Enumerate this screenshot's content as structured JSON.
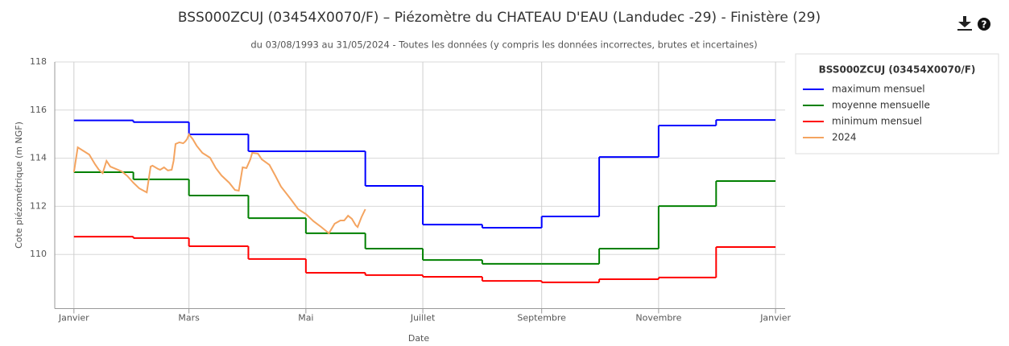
{
  "chart_data": {
    "type": "line",
    "title": "BSS000ZCUJ (03454X0070/F) – Piézomètre du CHATEAU D'EAU (Landudec -29) - Finistère (29)",
    "subtitle": "du 03/08/1993 au 31/05/2024 - Toutes les données (y compris les données incorrectes, brutes et incertaines)",
    "x_label": "Date",
    "y_label": "Cote piézométrique (m NGF)",
    "legend_title": "BSS000ZCUJ (03454X0070/F)",
    "legend": "right",
    "grid": true,
    "xlim": [
      -10,
      371
    ],
    "xticks": [
      {
        "value": 0,
        "label": "Janvier"
      },
      {
        "value": 60,
        "label": "Mars"
      },
      {
        "value": 121,
        "label": "Mai"
      },
      {
        "value": 182,
        "label": "Juillet"
      },
      {
        "value": 244,
        "label": "Septembre"
      },
      {
        "value": 305,
        "label": "Novembre"
      },
      {
        "value": 366,
        "label": "Janvier"
      }
    ],
    "ylim": [
      107.75,
      118
    ],
    "yticks": [
      110,
      112,
      114,
      116,
      118
    ],
    "series": [
      {
        "name": "maximum mensuel",
        "color": "#0000ff",
        "step": true,
        "x": [
          0,
          31,
          60,
          91,
          121,
          152,
          182,
          213,
          244,
          274,
          305,
          335
        ],
        "values": [
          115.57,
          115.5,
          114.99,
          114.29,
          114.29,
          112.85,
          111.24,
          111.11,
          111.58,
          114.05,
          115.36,
          115.59
        ]
      },
      {
        "name": "moyenne mensuelle",
        "color": "#008000",
        "step": true,
        "x": [
          0,
          31,
          60,
          91,
          121,
          152,
          182,
          213,
          244,
          274,
          305,
          335
        ],
        "values": [
          113.42,
          113.12,
          112.45,
          111.51,
          110.88,
          110.24,
          109.77,
          109.61,
          109.61,
          110.24,
          112.01,
          113.05
        ]
      },
      {
        "name": "minimum mensuel",
        "color": "#ff0000",
        "step": true,
        "x": [
          0,
          31,
          60,
          91,
          121,
          152,
          182,
          213,
          244,
          274,
          305,
          335
        ],
        "values": [
          110.74,
          110.68,
          110.34,
          109.81,
          109.24,
          109.14,
          109.07,
          108.9,
          108.84,
          108.97,
          109.04,
          110.31
        ]
      },
      {
        "name": "2024",
        "color": "#f4a460",
        "step": false,
        "x": [
          0,
          2,
          4,
          8,
          11,
          13,
          15,
          17,
          19,
          22,
          25,
          28,
          31,
          34,
          37,
          38,
          40,
          41,
          44,
          45,
          47,
          49,
          51,
          52,
          53,
          55,
          57,
          58,
          59,
          60,
          62,
          64,
          67,
          71,
          74,
          77,
          81,
          84,
          86,
          88,
          90,
          92,
          93,
          96,
          98,
          102,
          105,
          108,
          113,
          117,
          121,
          125,
          129,
          133,
          134,
          136,
          139,
          141,
          143,
          145,
          147,
          148,
          150,
          152
        ],
        "values": [
          113.42,
          114.45,
          114.35,
          114.15,
          113.75,
          113.52,
          113.38,
          113.89,
          113.65,
          113.55,
          113.45,
          113.25,
          112.98,
          112.75,
          112.62,
          112.58,
          113.65,
          113.69,
          113.55,
          113.52,
          113.62,
          113.49,
          113.52,
          113.89,
          114.59,
          114.66,
          114.62,
          114.69,
          114.79,
          114.99,
          114.79,
          114.52,
          114.22,
          114.02,
          113.59,
          113.28,
          112.98,
          112.68,
          112.65,
          113.62,
          113.59,
          113.95,
          114.22,
          114.19,
          113.95,
          113.72,
          113.28,
          112.82,
          112.31,
          111.88,
          111.68,
          111.38,
          111.14,
          110.88,
          111.01,
          111.28,
          111.41,
          111.41,
          111.61,
          111.48,
          111.21,
          111.14,
          111.55,
          111.88
        ]
      }
    ]
  }
}
